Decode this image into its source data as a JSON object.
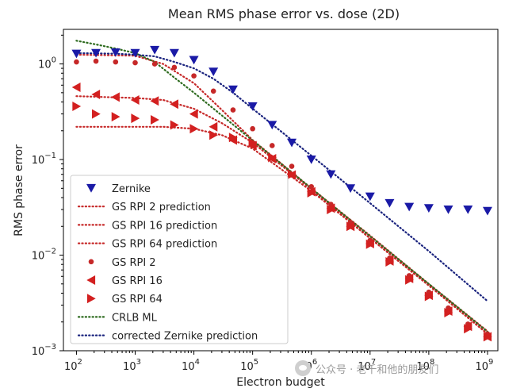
{
  "chart_data": {
    "type": "scatter",
    "title": "Mean RMS phase error vs. dose (2D)",
    "xlabel": "Electron budget",
    "ylabel": "RMS phase error",
    "xscale": "log",
    "yscale": "log",
    "xlim": [
      60,
      1500000000
    ],
    "ylim": [
      0.001,
      2.3
    ],
    "x_ticks": [
      {
        "base": "10",
        "exp": "2",
        "value": 100
      },
      {
        "base": "10",
        "exp": "3",
        "value": 1000
      },
      {
        "base": "10",
        "exp": "4",
        "value": 10000
      },
      {
        "base": "10",
        "exp": "5",
        "value": 100000
      },
      {
        "base": "10",
        "exp": "6",
        "value": 1000000
      },
      {
        "base": "10",
        "exp": "7",
        "value": 10000000
      },
      {
        "base": "10",
        "exp": "8",
        "value": 100000000
      },
      {
        "base": "10",
        "exp": "9",
        "value": 1000000000
      }
    ],
    "y_ticks": [
      {
        "base": "10",
        "exp": "−3",
        "value": 0.001
      },
      {
        "base": "10",
        "exp": "−2",
        "value": 0.01
      },
      {
        "base": "10",
        "exp": "−1",
        "value": 0.1
      },
      {
        "base": "10",
        "exp": "0",
        "value": 1
      }
    ],
    "x": [
      100,
      215,
      464,
      1000,
      2150,
      4640,
      10000,
      21500,
      46400,
      100000,
      215000,
      464000,
      1000000,
      2150000,
      4640000,
      10000000,
      21500000,
      46400000,
      100000000,
      215000000,
      464000000,
      1000000000
    ],
    "legend_position": "lower-left",
    "series": [
      {
        "name": "Zernike",
        "kind": "marker",
        "marker": "triangle-down",
        "color": "#1a1aa6",
        "x": [
          100,
          215,
          464,
          1000,
          2150,
          4640,
          10000,
          21500,
          46400,
          100000,
          215000,
          464000,
          1000000,
          2150000,
          4640000,
          10000000,
          21500000,
          46400000,
          100000000,
          215000000,
          464000000,
          1000000000
        ],
        "values": [
          1.28,
          1.3,
          1.32,
          1.3,
          1.4,
          1.3,
          1.1,
          0.83,
          0.54,
          0.36,
          0.23,
          0.15,
          0.1,
          0.07,
          0.05,
          0.041,
          0.035,
          0.032,
          0.031,
          0.03,
          0.03,
          0.029
        ]
      },
      {
        "name": "GS RPI 2 prediction",
        "kind": "line",
        "style": "dotted",
        "color": "#c62828",
        "x": [
          100,
          1000,
          3000,
          10000,
          30000,
          100000,
          1000000,
          10000000,
          100000000,
          1000000000
        ],
        "values": [
          1.25,
          1.22,
          1.0,
          0.63,
          0.33,
          0.16,
          0.05,
          0.016,
          0.005,
          0.0016
        ]
      },
      {
        "name": "GS RPI 16 prediction",
        "kind": "line",
        "style": "dotted",
        "color": "#c62828",
        "x": [
          100,
          1000,
          3000,
          10000,
          30000,
          100000,
          1000000,
          10000000,
          100000000,
          1000000000
        ],
        "values": [
          0.46,
          0.44,
          0.42,
          0.34,
          0.24,
          0.15,
          0.049,
          0.015,
          0.0049,
          0.0015
        ]
      },
      {
        "name": "GS RPI 64 prediction",
        "kind": "line",
        "style": "dotted",
        "color": "#c62828",
        "x": [
          100,
          1000,
          3000,
          10000,
          30000,
          100000,
          1000000,
          10000000,
          100000000,
          1000000000
        ],
        "values": [
          0.22,
          0.22,
          0.22,
          0.21,
          0.18,
          0.13,
          0.047,
          0.015,
          0.0048,
          0.0015
        ]
      },
      {
        "name": "GS RPI 2",
        "kind": "marker",
        "marker": "dot",
        "color": "#c62828",
        "x": [
          100,
          215,
          464,
          1000,
          2150,
          4640,
          10000,
          21500,
          46400,
          100000,
          215000,
          464000,
          1000000,
          2150000,
          4640000,
          10000000,
          21500000,
          46400000,
          100000000,
          215000000,
          464000000,
          1000000000
        ],
        "values": [
          1.05,
          1.07,
          1.05,
          1.03,
          1.0,
          0.92,
          0.75,
          0.52,
          0.33,
          0.21,
          0.14,
          0.085,
          0.052,
          0.034,
          0.022,
          0.0143,
          0.0093,
          0.0061,
          0.0041,
          0.0028,
          0.0019,
          0.0015
        ]
      },
      {
        "name": "GS RPI 16",
        "kind": "marker",
        "marker": "triangle-left",
        "color": "#d32020",
        "x": [
          100,
          215,
          464,
          1000,
          2150,
          4640,
          10000,
          21500,
          46400,
          100000,
          215000,
          464000,
          1000000,
          2150000,
          4640000,
          10000000,
          21500000,
          46400000,
          100000000,
          215000000,
          464000000,
          1000000000
        ],
        "values": [
          0.57,
          0.48,
          0.45,
          0.42,
          0.41,
          0.38,
          0.3,
          0.22,
          0.16,
          0.14,
          0.102,
          0.069,
          0.046,
          0.031,
          0.02,
          0.0132,
          0.0087,
          0.0057,
          0.0038,
          0.0026,
          0.0018,
          0.0014
        ]
      },
      {
        "name": "GS RPI 64",
        "kind": "marker",
        "marker": "triangle-right",
        "color": "#d32020",
        "x": [
          100,
          215,
          464,
          1000,
          2150,
          4640,
          10000,
          21500,
          46400,
          100000,
          215000,
          464000,
          1000000,
          2150000,
          4640000,
          10000000,
          21500000,
          46400000,
          100000000,
          215000000,
          464000000,
          1000000000
        ],
        "values": [
          0.36,
          0.3,
          0.28,
          0.27,
          0.26,
          0.23,
          0.21,
          0.18,
          0.17,
          0.15,
          0.105,
          0.07,
          0.045,
          0.03,
          0.02,
          0.013,
          0.0085,
          0.0055,
          0.0037,
          0.0025,
          0.0017,
          0.0014
        ]
      },
      {
        "name": "CRLB ML",
        "kind": "line",
        "style": "dotted",
        "color": "#2e6b1f",
        "x": [
          100,
          215,
          464,
          1000,
          2150,
          4640,
          10000,
          100000,
          1000000,
          10000000,
          100000000,
          1000000000
        ],
        "values": [
          1.75,
          1.6,
          1.45,
          1.3,
          1.05,
          0.72,
          0.5,
          0.158,
          0.05,
          0.0158,
          0.005,
          0.00158
        ]
      },
      {
        "name": "corrected Zernike prediction",
        "kind": "line",
        "style": "dotted",
        "color": "#1a237e",
        "x": [
          100,
          464,
          1000,
          2150,
          4640,
          10000,
          21500,
          46400,
          100000,
          1000000,
          10000000,
          100000000,
          1000000000
        ],
        "values": [
          1.3,
          1.28,
          1.25,
          1.2,
          1.05,
          0.9,
          0.7,
          0.5,
          0.34,
          0.11,
          0.035,
          0.011,
          0.0033
        ]
      }
    ]
  },
  "watermark": {
    "text": "公众号 · 老千和他的朋友们",
    "icon": "wechat-icon"
  }
}
